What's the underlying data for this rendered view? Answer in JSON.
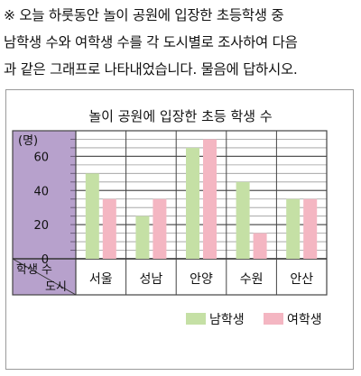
{
  "intro_lines": [
    "※ 오늘 하룻동안 놀이 공원에 입장한 초등학생 중",
    "남학생 수와 여학생 수를 각 도시별로 조사하여 다음",
    "과 같은 그래프로 나타내었습니다. 물음에 답하시오."
  ],
  "colors": {
    "boy": "#c5e0a5",
    "girl": "#f4b6c2",
    "panel": "#b7a1cc",
    "axis": "#6b5a7a"
  },
  "chart_data": {
    "type": "bar",
    "title": "놀이 공원에 입장한 초등 학생 수",
    "ylabel": "(명)",
    "row_header": "학생 수",
    "col_header": "도시",
    "categories": [
      "서울",
      "성남",
      "안양",
      "수원",
      "안산"
    ],
    "series": [
      {
        "name": "남학생",
        "values": [
          50,
          25,
          65,
          45,
          35
        ]
      },
      {
        "name": "여학생",
        "values": [
          35,
          35,
          70,
          15,
          35
        ]
      }
    ],
    "ylim": [
      0,
      75
    ],
    "yticks": [
      0,
      20,
      40,
      60
    ],
    "grid": true,
    "legend": "bottom-right"
  }
}
